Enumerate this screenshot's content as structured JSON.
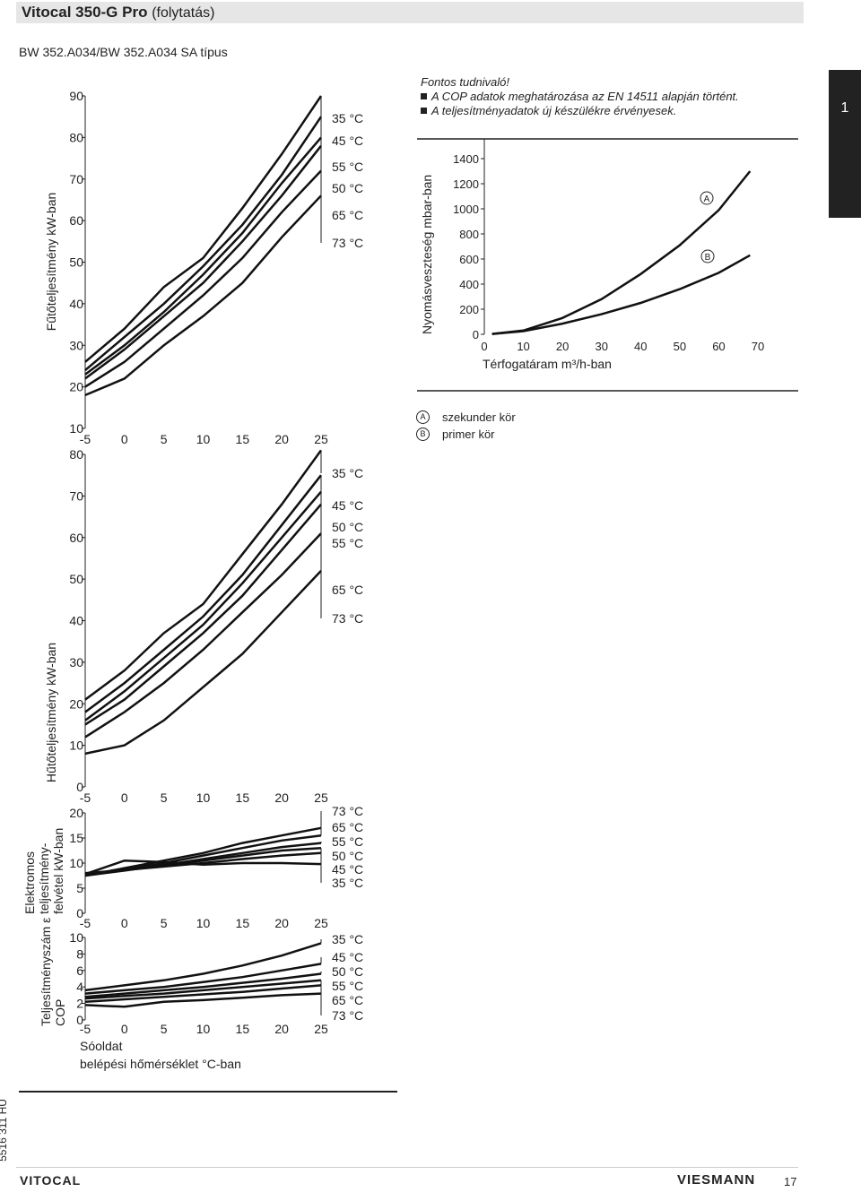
{
  "header": {
    "title": "Vitocal 350-G Pro",
    "title_suffix": "(folytatás)",
    "model": "BW 352.A034/BW 352.A034 SA típus"
  },
  "side_tab": "1",
  "notes": {
    "heading": "Fontos tudnivaló!",
    "items": [
      "A COP adatok meghatározása az EN 14511 alapján történt.",
      "A teljesítményadatok új készülékre érvényesek."
    ]
  },
  "chart_data": [
    {
      "id": "heating",
      "type": "line",
      "ylabel": "Fűtőteljesítmény kW-ban",
      "x_ticks": [
        "-5",
        "0",
        "5",
        "10",
        "15",
        "20",
        "25"
      ],
      "y_ticks": [
        "10",
        "20",
        "30",
        "40",
        "50",
        "60",
        "70",
        "80",
        "90"
      ],
      "xlim": [
        -5,
        25
      ],
      "ylim": [
        10,
        90
      ],
      "x": [
        -5,
        0,
        5,
        10,
        15,
        20,
        25
      ],
      "series": [
        {
          "name": "35 °C",
          "label": "35 °C",
          "values": [
            26,
            34,
            44,
            51,
            63,
            76,
            90
          ]
        },
        {
          "name": "45 °C",
          "label": "45 °C",
          "values": [
            24,
            32,
            40,
            49,
            59,
            71,
            85
          ]
        },
        {
          "name": "55 °C",
          "label": "55 °C",
          "values": [
            22,
            29,
            37,
            45,
            55,
            66,
            78
          ]
        },
        {
          "name": "50 °C",
          "label": "50 °C",
          "values": [
            23,
            30,
            38,
            47,
            57,
            69,
            80
          ]
        },
        {
          "name": "65 °C",
          "label": "65 °C",
          "values": [
            20,
            26,
            34,
            42,
            51,
            62,
            72
          ]
        },
        {
          "name": "73 °C",
          "label": "73 °C",
          "values": [
            18,
            22,
            30,
            37,
            45,
            56,
            66
          ]
        }
      ]
    },
    {
      "id": "cooling",
      "type": "line",
      "ylabel": "Hűtőteljesítmény kW-ban",
      "x_ticks": [
        "-5",
        "0",
        "5",
        "10",
        "15",
        "20",
        "25"
      ],
      "y_ticks": [
        "0",
        "10",
        "20",
        "30",
        "40",
        "50",
        "60",
        "70",
        "80"
      ],
      "xlim": [
        -5,
        25
      ],
      "ylim": [
        0,
        80
      ],
      "x": [
        -5,
        0,
        5,
        10,
        15,
        20,
        25
      ],
      "series": [
        {
          "name": "35 °C",
          "label": "35 °C",
          "values": [
            21,
            28,
            37,
            44,
            56,
            68,
            81
          ]
        },
        {
          "name": "45 °C",
          "label": "45 °C",
          "values": [
            18,
            25,
            33,
            41,
            51,
            63,
            75
          ]
        },
        {
          "name": "50 °C",
          "label": "50 °C",
          "values": [
            16,
            23,
            31,
            39,
            49,
            60,
            71
          ]
        },
        {
          "name": "55 °C",
          "label": "55 °C",
          "values": [
            15,
            21,
            29,
            37,
            46,
            57,
            68
          ]
        },
        {
          "name": "65 °C",
          "label": "65 °C",
          "values": [
            12,
            18,
            25,
            33,
            42,
            51,
            61
          ]
        },
        {
          "name": "73 °C",
          "label": "73 °C",
          "values": [
            8,
            10,
            16,
            24,
            32,
            42,
            52
          ]
        }
      ]
    },
    {
      "id": "power",
      "type": "line",
      "ylabel_lines": [
        "Elektromos",
        "teljesítmény-",
        "felvétel kW-ban"
      ],
      "x_ticks": [
        "-5",
        "0",
        "5",
        "10",
        "15",
        "20",
        "25"
      ],
      "y_ticks": [
        "0",
        "5",
        "10",
        "15",
        "20"
      ],
      "xlim": [
        -5,
        25
      ],
      "ylim": [
        0,
        20
      ],
      "x": [
        -5,
        0,
        5,
        10,
        15,
        20,
        25
      ],
      "series": [
        {
          "name": "73 °C",
          "label": "73 °C",
          "values": [
            7.5,
            9.0,
            10.5,
            12.0,
            14.0,
            15.5,
            17.0
          ]
        },
        {
          "name": "65 °C",
          "label": "65 °C",
          "values": [
            7.5,
            8.8,
            10.0,
            11.5,
            13.0,
            14.5,
            15.5
          ]
        },
        {
          "name": "55 °C",
          "label": "55 °C",
          "values": [
            7.5,
            8.5,
            9.6,
            10.8,
            12.0,
            13.2,
            14.0
          ]
        },
        {
          "name": "50 °C",
          "label": "50 °C",
          "values": [
            7.8,
            8.6,
            9.5,
            10.5,
            11.5,
            12.5,
            13.0
          ]
        },
        {
          "name": "45 °C",
          "label": "45 °C",
          "values": [
            8.0,
            8.6,
            9.3,
            10.0,
            10.8,
            11.5,
            12.0
          ]
        },
        {
          "name": "35 °C",
          "label": "35 °C",
          "values": [
            7.8,
            10.5,
            10.2,
            9.7,
            10.0,
            10.0,
            9.8
          ]
        }
      ]
    },
    {
      "id": "cop",
      "type": "line",
      "ylabel_lines": [
        "Teljesítményszám ε",
        "COP"
      ],
      "xlabel_lines": [
        "Sóoldat",
        "belépési hőmérséklet °C-ban"
      ],
      "x_ticks": [
        "-5",
        "0",
        "5",
        "10",
        "15",
        "20",
        "25"
      ],
      "y_ticks": [
        "0",
        "2",
        "4",
        "6",
        "8",
        "10"
      ],
      "xlim": [
        -5,
        25
      ],
      "ylim": [
        0,
        10
      ],
      "x": [
        -5,
        0,
        5,
        10,
        15,
        20,
        25
      ],
      "series": [
        {
          "name": "35 °C",
          "label": "35 °C",
          "values": [
            3.6,
            4.2,
            4.8,
            5.6,
            6.6,
            7.8,
            9.3
          ]
        },
        {
          "name": "45 °C",
          "label": "45 °C",
          "values": [
            3.2,
            3.6,
            4.0,
            4.6,
            5.2,
            6.0,
            6.8
          ]
        },
        {
          "name": "50 °C",
          "label": "50 °C",
          "values": [
            2.8,
            3.2,
            3.6,
            4.0,
            4.5,
            5.0,
            5.6
          ]
        },
        {
          "name": "55 °C",
          "label": "55 °C",
          "values": [
            2.6,
            2.9,
            3.2,
            3.6,
            4.0,
            4.4,
            4.8
          ]
        },
        {
          "name": "65 °C",
          "label": "65 °C",
          "values": [
            2.2,
            2.5,
            2.8,
            3.1,
            3.4,
            3.8,
            4.2
          ]
        },
        {
          "name": "73 °C",
          "label": "73 °C",
          "values": [
            1.8,
            1.6,
            2.2,
            2.4,
            2.7,
            3.0,
            3.2
          ]
        }
      ]
    },
    {
      "id": "pressure",
      "type": "line",
      "ylabel": "Nyomásveszteség mbar-ban",
      "xlabel": "Térfogatáram m³/h-ban",
      "x_ticks": [
        "0",
        "10",
        "20",
        "30",
        "40",
        "50",
        "60",
        "70"
      ],
      "y_ticks": [
        "0",
        "200",
        "400",
        "600",
        "800",
        "1000",
        "1200",
        "1400"
      ],
      "xlim": [
        0,
        70
      ],
      "ylim": [
        0,
        1400
      ],
      "x": [
        2,
        10,
        20,
        30,
        40,
        50,
        60,
        68
      ],
      "series": [
        {
          "name": "A",
          "label": "A",
          "values": [
            3,
            30,
            130,
            280,
            480,
            710,
            990,
            1300
          ]
        },
        {
          "name": "B",
          "label": "B",
          "values": [
            3,
            25,
            85,
            160,
            250,
            360,
            490,
            630
          ]
        }
      ]
    }
  ],
  "legend": [
    {
      "key": "A",
      "text": "szekunder kör"
    },
    {
      "key": "B",
      "text": "primer kör"
    }
  ],
  "footer": {
    "doc_code": "5516 311 HU",
    "logo": "VITOCAL",
    "brand": "VIESMANN",
    "page": "17"
  },
  "colors": {
    "line": "#111111",
    "title_bg": "#e6e6e6",
    "tab_bg": "#222222"
  }
}
